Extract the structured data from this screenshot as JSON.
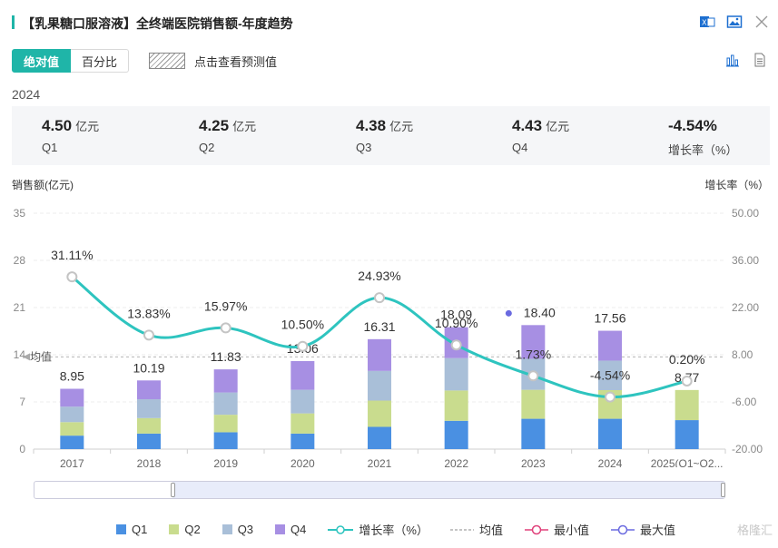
{
  "header": {
    "title": "【乳果糖口服溶液】全终端医院销售额-年度趋势",
    "icons": [
      "excel-export-icon",
      "image-download-icon",
      "close-icon"
    ]
  },
  "toggle": {
    "absolute_label": "绝对值",
    "percent_label": "百分比",
    "forecast_label": "点击查看预测值"
  },
  "summary": {
    "year": "2024",
    "items": [
      {
        "value": "4.50",
        "unit": "亿元",
        "label": "Q1"
      },
      {
        "value": "4.25",
        "unit": "亿元",
        "label": "Q2"
      },
      {
        "value": "4.38",
        "unit": "亿元",
        "label": "Q3"
      },
      {
        "value": "4.43",
        "unit": "亿元",
        "label": "Q4"
      },
      {
        "value": "-4.54%",
        "unit": "",
        "label": "增长率（%）"
      }
    ]
  },
  "axes": {
    "left_title": "销售额(亿元)",
    "right_title": "增长率（%）"
  },
  "legend": {
    "q1": "Q1",
    "q2": "Q2",
    "q3": "Q3",
    "q4": "Q4",
    "growth": "增长率（%）",
    "avg": "均值",
    "min": "最小值",
    "max": "最大值"
  },
  "watermark": "格隆汇",
  "colors": {
    "q1": "#4a90e2",
    "q2": "#c9dc8e",
    "q3": "#a9bfd8",
    "q4": "#a78fe3",
    "line": "#2ec4bf",
    "accent": "#1fb5a8",
    "min": "#e0407a",
    "max": "#6a6ae0"
  },
  "chart_data": {
    "type": "bar",
    "stacked": true,
    "categories": [
      "2017",
      "2018",
      "2019",
      "2020",
      "2021",
      "2022",
      "2023",
      "2024",
      "2025(Q1~Q2..."
    ],
    "series": [
      {
        "name": "Q1",
        "values": [
          2.0,
          2.3,
          2.5,
          2.3,
          3.3,
          4.2,
          4.5,
          4.5,
          4.3
        ]
      },
      {
        "name": "Q2",
        "values": [
          2.0,
          2.3,
          2.6,
          3.0,
          3.9,
          4.5,
          4.3,
          4.25,
          4.47
        ]
      },
      {
        "name": "Q3",
        "values": [
          2.3,
          2.8,
          3.3,
          3.5,
          4.4,
          4.8,
          4.6,
          4.38,
          0
        ]
      },
      {
        "name": "Q4",
        "values": [
          2.65,
          2.79,
          3.43,
          4.26,
          4.71,
          4.59,
          5.0,
          4.43,
          0
        ]
      }
    ],
    "totals": [
      8.95,
      10.19,
      11.83,
      13.06,
      16.31,
      18.09,
      18.4,
      17.56,
      8.77
    ],
    "total_labels": [
      "8.95",
      "10.19",
      "11.83",
      "13.06",
      "16.31",
      "18.09",
      "18.40",
      "17.56",
      "8.77"
    ],
    "growth": [
      31.11,
      13.83,
      15.97,
      10.5,
      24.93,
      10.9,
      1.73,
      -4.54,
      0.2
    ],
    "growth_labels": [
      "31.11%",
      "13.83%",
      "15.97%",
      "10.50%",
      "24.93%",
      "10.90%",
      "1.73%",
      "-4.54%",
      "0.20%"
    ],
    "max_marker_index": 6,
    "average": 13.68,
    "average_label": "均值",
    "left_axis": {
      "min": 0,
      "max": 35,
      "ticks": [
        "0",
        "7",
        "14",
        "21",
        "28",
        "35"
      ],
      "tick_values": [
        0,
        7,
        14,
        21,
        28,
        35
      ]
    },
    "right_axis": {
      "min": -20,
      "max": 50,
      "ticks": [
        "-20.00",
        "-6.00",
        "8.00",
        "22.00",
        "36.00",
        "50.00"
      ],
      "tick_values": [
        -20,
        -6,
        8,
        22,
        36,
        50
      ]
    }
  }
}
